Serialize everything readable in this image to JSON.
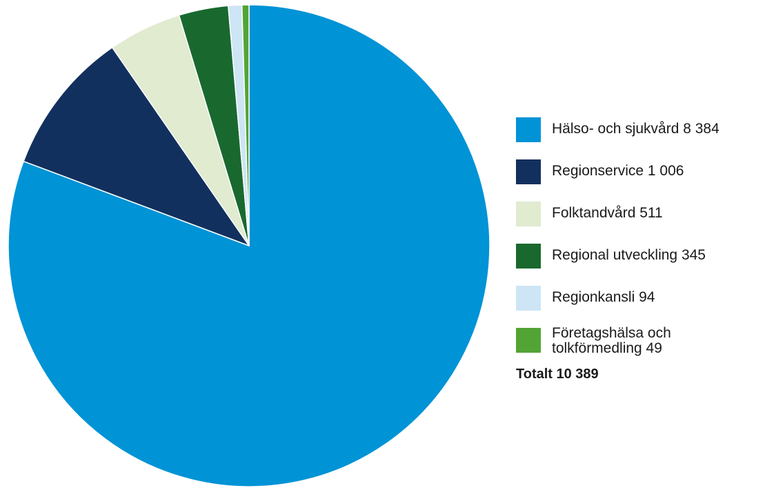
{
  "chart_data": {
    "type": "pie",
    "start_angle_deg": 0,
    "direction": "clockwise",
    "slices": [
      {
        "label": "Hälso- och sjukvård  8 384",
        "name": "Hälso- och sjukvård",
        "value": 8384,
        "color": "#0093d6"
      },
      {
        "label": "Regionservice 1 006",
        "name": "Regionservice",
        "value": 1006,
        "color": "#12305e"
      },
      {
        "label": "Folktandvård 511",
        "name": "Folktandvård",
        "value": 511,
        "color": "#e0ebd0"
      },
      {
        "label": "Regional utveckling 345",
        "name": "Regional utveckling",
        "value": 345,
        "color": "#19692f"
      },
      {
        "label": "Regionkansli 94",
        "name": "Regionkansli",
        "value": 94,
        "color": "#cde5f5"
      },
      {
        "label": "Företagshälsa och\ntolkförmedling 49",
        "name": "Företagshälsa och tolkförmedling",
        "value": 49,
        "color": "#52a535"
      }
    ],
    "total_label": "Totalt 10 389",
    "total": 10389,
    "legend_position": "right"
  }
}
